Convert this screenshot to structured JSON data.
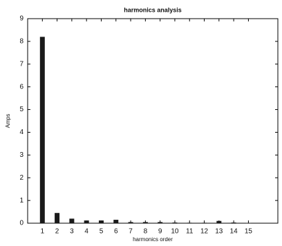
{
  "chart_data": {
    "type": "bar",
    "title": "harmonics analysis",
    "x_label": "harmonics order",
    "y_label": "Amps",
    "x": [
      1,
      2,
      3,
      4,
      5,
      6,
      7,
      8,
      9,
      10,
      11,
      12,
      13,
      14,
      15
    ],
    "values": [
      8.2,
      0.45,
      0.2,
      0.12,
      0.12,
      0.15,
      0.05,
      0.05,
      0.05,
      0.03,
      0.02,
      0.02,
      0.1,
      0.03,
      0.01
    ],
    "color": "#1a1a1a",
    "xlim": [
      0,
      17
    ],
    "xticks": [
      1,
      2,
      3,
      4,
      5,
      6,
      7,
      8,
      9,
      10,
      11,
      12,
      13,
      14,
      15
    ],
    "ylim": [
      0,
      9
    ],
    "yticks": [
      0,
      1,
      2,
      3,
      4,
      5,
      6,
      7,
      8,
      9
    ],
    "grid": false
  }
}
